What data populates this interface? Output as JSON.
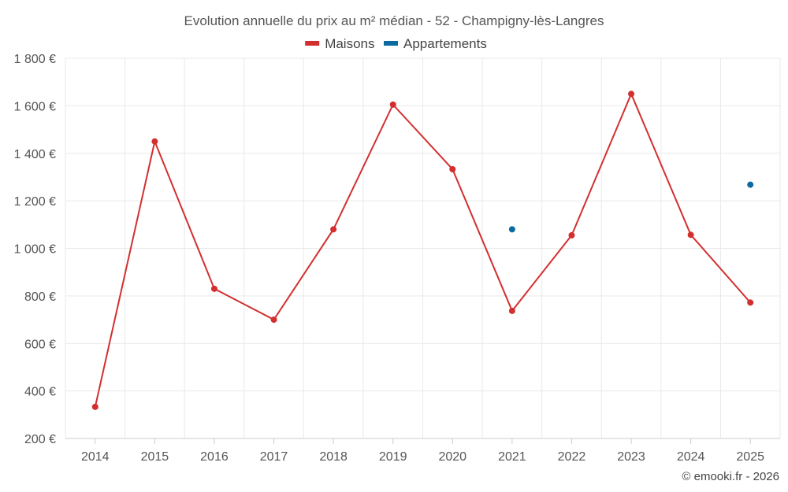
{
  "chart_data": {
    "type": "line",
    "title": "Evolution annuelle du prix au m² médian - 52 - Champigny-lès-Langres",
    "categories": [
      "2014",
      "2015",
      "2016",
      "2017",
      "2018",
      "2019",
      "2020",
      "2021",
      "2022",
      "2023",
      "2024",
      "2025"
    ],
    "series": [
      {
        "name": "Maisons",
        "color": "#d32f2f",
        "values": [
          333,
          1450,
          830,
          700,
          1080,
          1605,
          1333,
          737,
          1055,
          1650,
          1057,
          772
        ]
      },
      {
        "name": "Appartements",
        "color": "#0b6aa1",
        "values": [
          null,
          null,
          null,
          null,
          null,
          null,
          null,
          1080,
          null,
          null,
          null,
          1268
        ]
      }
    ],
    "ylim": [
      200,
      1800
    ],
    "yticks": [
      200,
      400,
      600,
      800,
      1000,
      1200,
      1400,
      1600,
      1800
    ],
    "ytick_labels": [
      "200 €",
      "400 €",
      "600 €",
      "800 €",
      "1 000 €",
      "1 200 €",
      "1 400 €",
      "1 600 €",
      "1 800 €"
    ],
    "grid": true,
    "legend_position": "top-center",
    "xlabel": "",
    "ylabel": ""
  },
  "credit": "© emooki.fr - 2026"
}
